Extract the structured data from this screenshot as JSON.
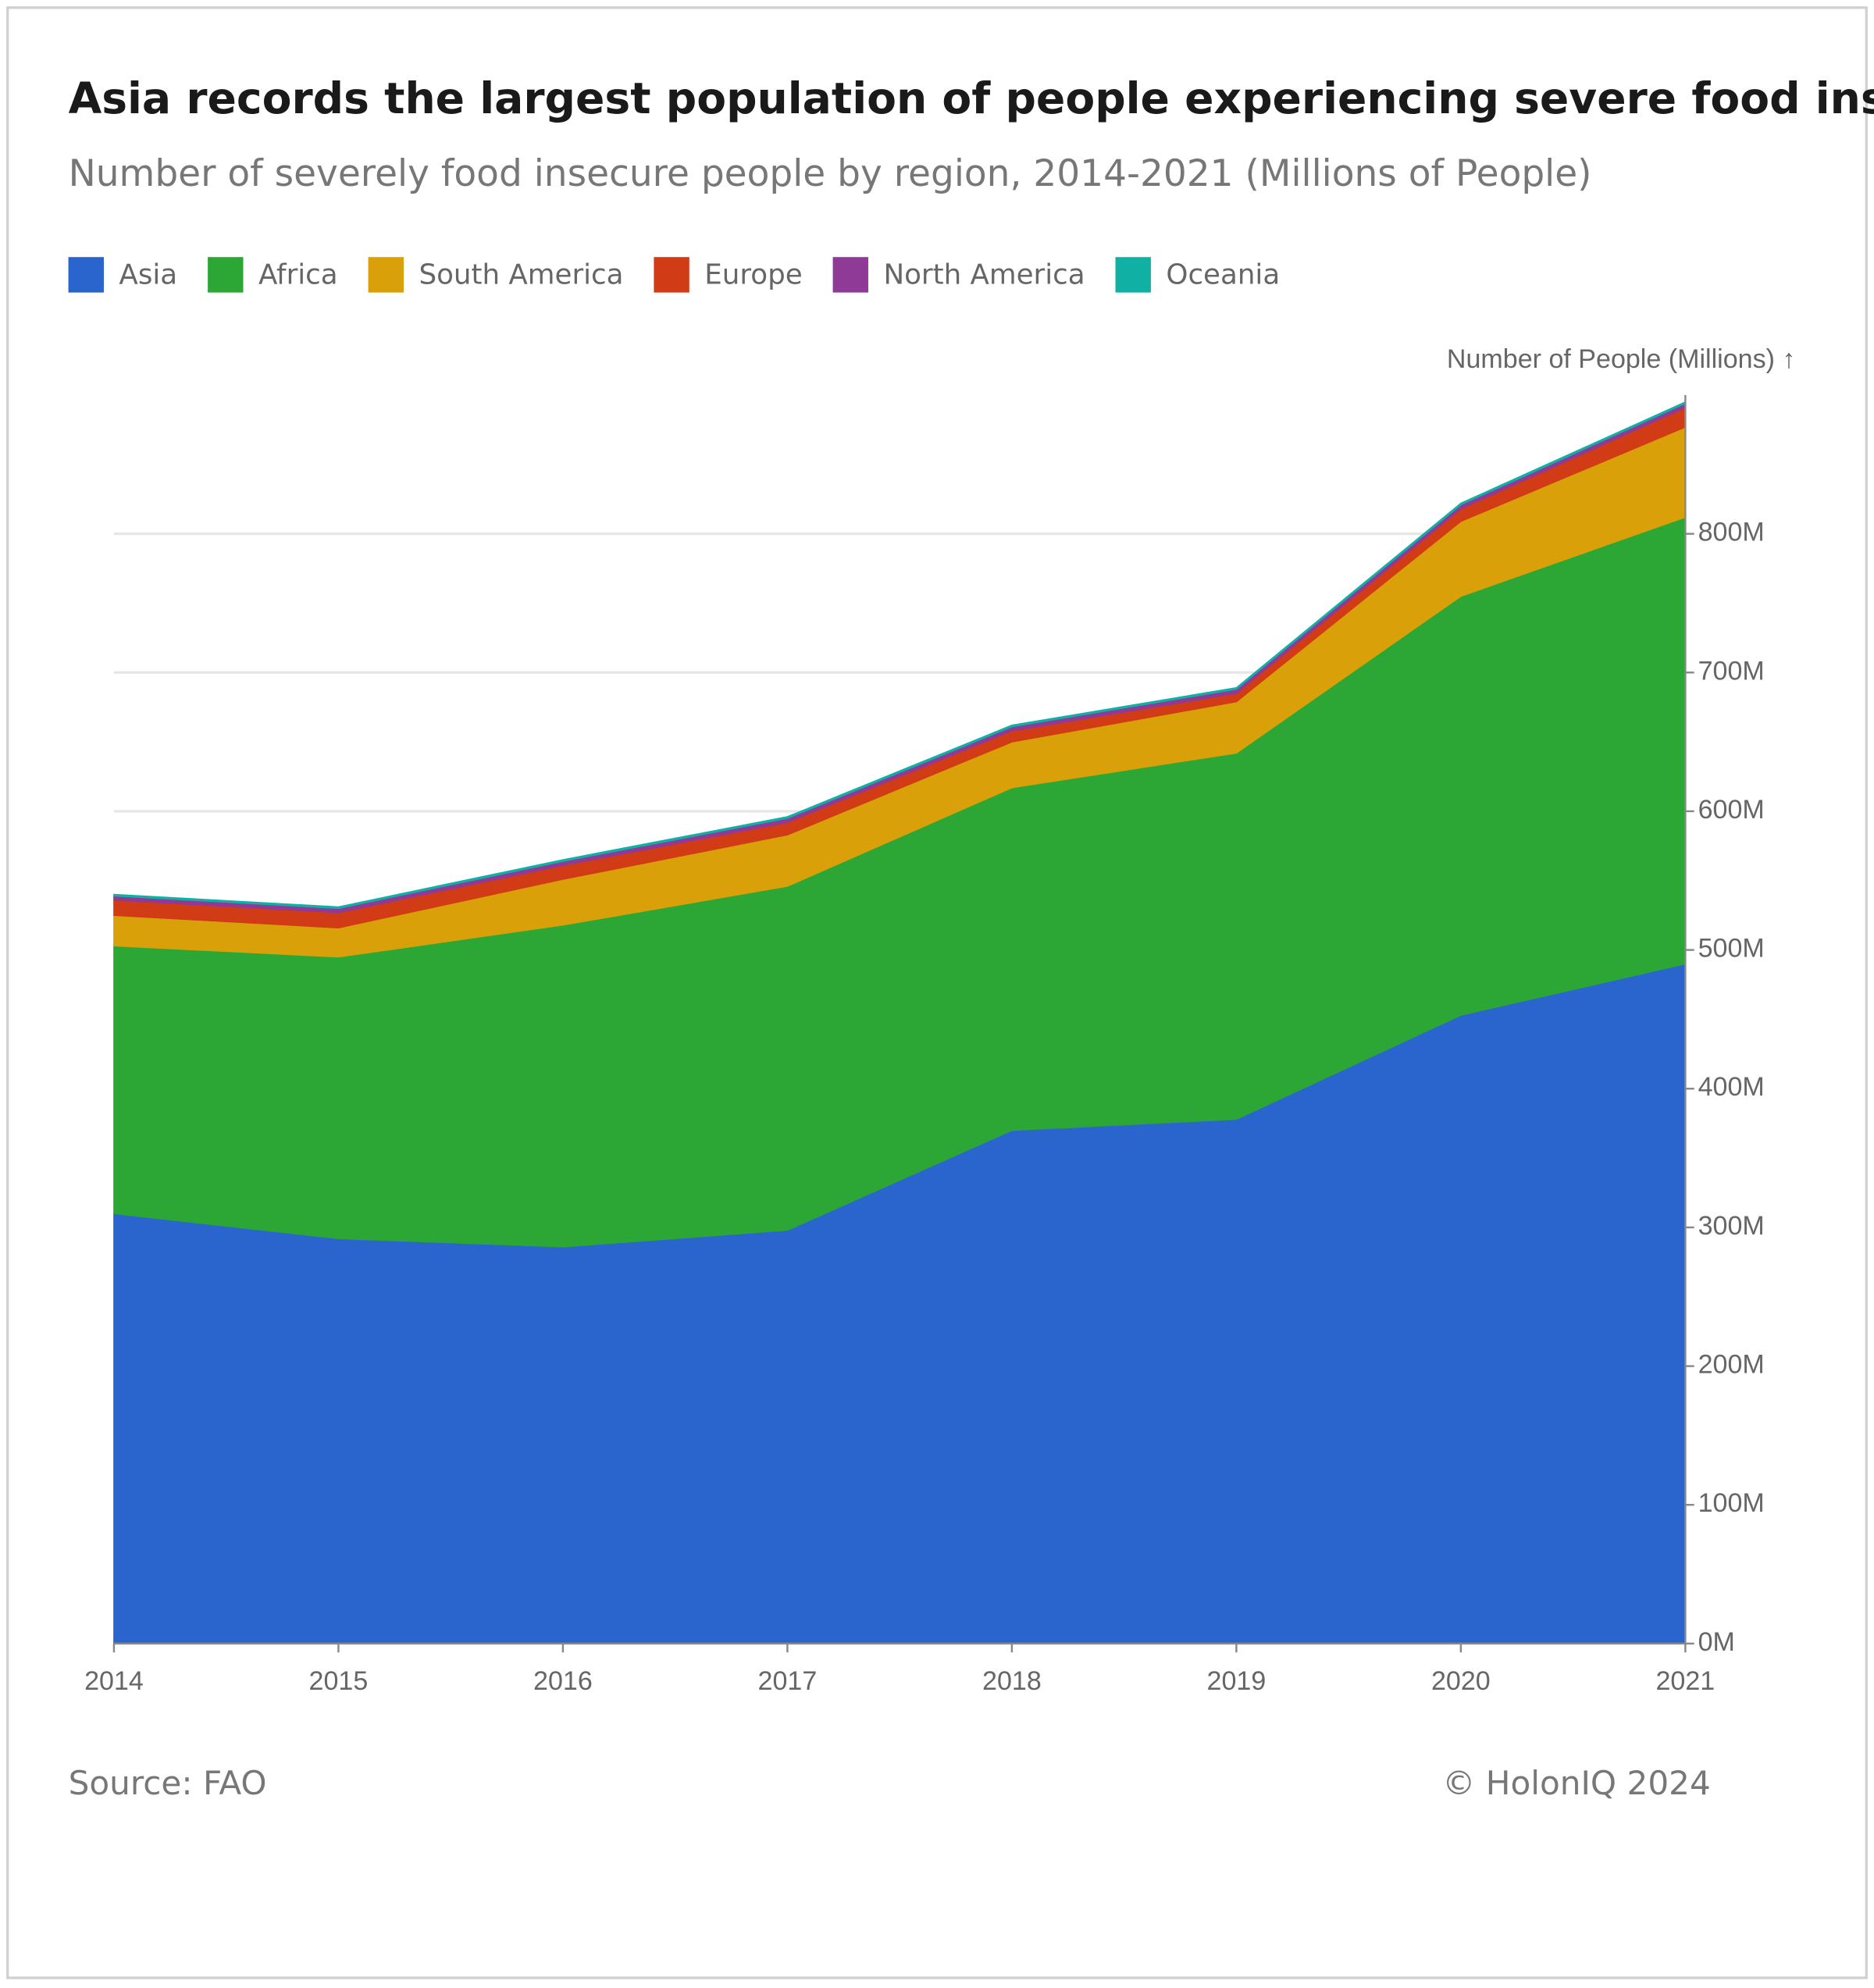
{
  "chart_data": {
    "type": "stacked-area",
    "title": "Asia records the largest population of people experiencing severe food insecurity",
    "subtitle": "Number of severely food insecure people by region, 2014-2021 (Millions of People)",
    "y_axis_label": "Number of People (Millions) ↑",
    "source": "Source: FAO",
    "credit": "© HolonIQ 2024",
    "categories": [
      "2014",
      "2015",
      "2016",
      "2017",
      "2018",
      "2019",
      "2020",
      "2021"
    ],
    "series": [
      {
        "name": "Asia",
        "color": "#2965cc",
        "values": [
          310,
          292,
          286,
          298,
          370,
          378,
          453,
          490
        ]
      },
      {
        "name": "Africa",
        "color": "#2ca634",
        "values": [
          193,
          203,
          232,
          248,
          247,
          264,
          302,
          322
        ]
      },
      {
        "name": "South America",
        "color": "#d9a00a",
        "values": [
          22,
          21,
          33,
          37,
          33,
          37,
          54,
          65
        ]
      },
      {
        "name": "Europe",
        "color": "#d13b15",
        "values": [
          11,
          11,
          10,
          9,
          8,
          6,
          9,
          14
        ]
      },
      {
        "name": "North America",
        "color": "#8e3a96",
        "values": [
          3,
          3,
          3,
          3,
          3,
          3,
          3,
          3
        ]
      },
      {
        "name": "Oceania",
        "color": "#11b0a5",
        "values": [
          1,
          1,
          1,
          1,
          1,
          1,
          1,
          1
        ]
      }
    ],
    "ylim": [
      0,
      900
    ],
    "yticks": [
      {
        "value": 0,
        "label": "0M"
      },
      {
        "value": 100,
        "label": "100M"
      },
      {
        "value": 200,
        "label": "200M"
      },
      {
        "value": 300,
        "label": "300M"
      },
      {
        "value": 400,
        "label": "400M"
      },
      {
        "value": 500,
        "label": "500M"
      },
      {
        "value": 600,
        "label": "600M"
      },
      {
        "value": 700,
        "label": "700M"
      },
      {
        "value": 800,
        "label": "800M"
      }
    ],
    "grid": true
  }
}
